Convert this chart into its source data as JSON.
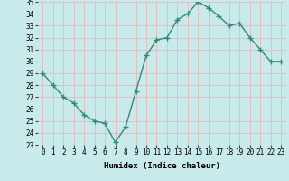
{
  "x": [
    0,
    1,
    2,
    3,
    4,
    5,
    6,
    7,
    8,
    9,
    10,
    11,
    12,
    13,
    14,
    15,
    16,
    17,
    18,
    19,
    20,
    21,
    22,
    23
  ],
  "y": [
    29,
    28,
    27,
    26.5,
    25.5,
    25,
    24.8,
    23.2,
    24.5,
    27.5,
    30.5,
    31.8,
    32,
    33.5,
    34,
    35,
    34.5,
    33.8,
    33,
    33.2,
    32,
    31,
    30,
    30
  ],
  "line_color": "#2d8c7a",
  "marker_color": "#2d8c7a",
  "bg_color": "#c8eaea",
  "grid_color": "#e8b8b8",
  "xlabel": "Humidex (Indice chaleur)",
  "ylim": [
    23,
    35
  ],
  "xlim": [
    -0.5,
    23.5
  ],
  "yticks": [
    23,
    24,
    25,
    26,
    27,
    28,
    29,
    30,
    31,
    32,
    33,
    34,
    35
  ],
  "xticks": [
    0,
    1,
    2,
    3,
    4,
    5,
    6,
    7,
    8,
    9,
    10,
    11,
    12,
    13,
    14,
    15,
    16,
    17,
    18,
    19,
    20,
    21,
    22,
    23
  ],
  "xtick_labels": [
    "0",
    "1",
    "2",
    "3",
    "4",
    "5",
    "6",
    "7",
    "8",
    "9",
    "10",
    "11",
    "12",
    "13",
    "14",
    "15",
    "16",
    "17",
    "18",
    "19",
    "20",
    "21",
    "22",
    "23"
  ],
  "label_fontsize": 6.5,
  "tick_fontsize": 5.5,
  "marker_size": 2.5,
  "line_width": 1.0
}
